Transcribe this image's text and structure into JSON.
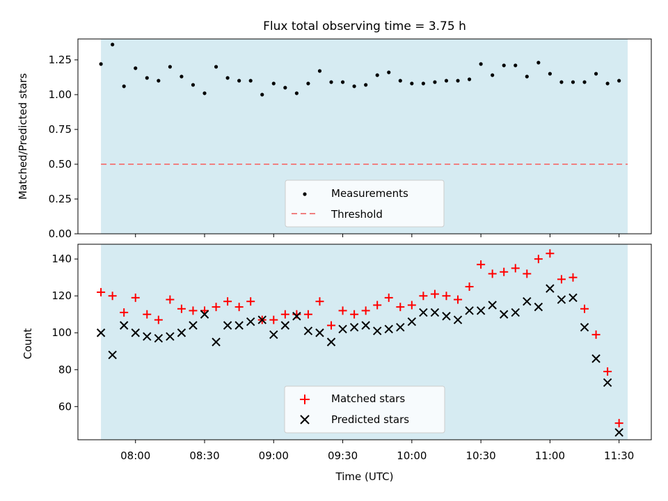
{
  "chart_data": [
    {
      "type": "scatter",
      "title": "Flux total observing time = 3.75 h",
      "ylabel": "Matched/Predicted stars",
      "xlabel": "",
      "ylim": [
        0,
        1.4
      ],
      "yticks": [
        "0.00",
        "0.25",
        "0.50",
        "0.75",
        "1.00",
        "1.25"
      ],
      "x_unit": "minutes after 07:00 UTC",
      "series": [
        {
          "name": "Measurements",
          "color": "#000000",
          "marker": "dot",
          "x": [
            45,
            50,
            55,
            60,
            65,
            70,
            75,
            80,
            85,
            90,
            95,
            100,
            105,
            110,
            115,
            120,
            125,
            130,
            135,
            140,
            145,
            150,
            155,
            160,
            165,
            170,
            175,
            180,
            185,
            190,
            195,
            200,
            205,
            210,
            215,
            220,
            225,
            230,
            235,
            240,
            245,
            250,
            255,
            260,
            265,
            270
          ],
          "values": [
            1.22,
            1.36,
            1.06,
            1.19,
            1.12,
            1.1,
            1.2,
            1.13,
            1.07,
            1.01,
            1.2,
            1.12,
            1.1,
            1.1,
            1.0,
            1.08,
            1.05,
            1.01,
            1.08,
            1.17,
            1.09,
            1.09,
            1.06,
            1.07,
            1.14,
            1.16,
            1.1,
            1.08,
            1.08,
            1.09,
            1.1,
            1.1,
            1.11,
            1.22,
            1.14,
            1.21,
            1.21,
            1.13,
            1.23,
            1.15,
            1.09,
            1.09,
            1.09,
            1.15,
            1.08,
            1.1
          ]
        }
      ],
      "threshold": {
        "name": "Threshold",
        "value": 0.5,
        "color": "#f08080"
      },
      "legend_placement": "lower center"
    },
    {
      "type": "scatter",
      "title": "",
      "ylabel": "Count",
      "xlabel": "Time (UTC)",
      "ylim": [
        42,
        148
      ],
      "yticks": [
        "60",
        "80",
        "100",
        "120",
        "140"
      ],
      "xticks": [
        "08:00",
        "08:30",
        "09:00",
        "09:30",
        "10:00",
        "10:30",
        "11:00",
        "11:30"
      ],
      "xtick_values": [
        60,
        90,
        120,
        150,
        180,
        210,
        240,
        270
      ],
      "xlim": [
        35,
        284
      ],
      "x_unit": "minutes after 07:00 UTC",
      "series": [
        {
          "name": "Matched stars",
          "color": "#ff0000",
          "marker": "plus",
          "x": [
            45,
            50,
            55,
            60,
            65,
            70,
            75,
            80,
            85,
            90,
            95,
            100,
            105,
            110,
            115,
            120,
            125,
            130,
            135,
            140,
            145,
            150,
            155,
            160,
            165,
            170,
            175,
            180,
            185,
            190,
            195,
            200,
            205,
            210,
            215,
            220,
            225,
            230,
            235,
            240,
            245,
            250,
            255,
            260,
            265,
            270
          ],
          "values": [
            122,
            120,
            111,
            119,
            110,
            107,
            118,
            113,
            112,
            112,
            114,
            117,
            114,
            117,
            107,
            107,
            110,
            110,
            110,
            117,
            104,
            112,
            110,
            112,
            115,
            119,
            114,
            115,
            120,
            121,
            120,
            118,
            125,
            137,
            132,
            133,
            135,
            132,
            140,
            143,
            129,
            130,
            113,
            99,
            79,
            51
          ]
        },
        {
          "name": "Predicted stars",
          "color": "#000000",
          "marker": "cross",
          "x": [
            45,
            50,
            55,
            60,
            65,
            70,
            75,
            80,
            85,
            90,
            95,
            100,
            105,
            110,
            115,
            120,
            125,
            130,
            135,
            140,
            145,
            150,
            155,
            160,
            165,
            170,
            175,
            180,
            185,
            190,
            195,
            200,
            205,
            210,
            215,
            220,
            225,
            230,
            235,
            240,
            245,
            250,
            255,
            260,
            265,
            270
          ],
          "values": [
            100,
            88,
            104,
            100,
            98,
            97,
            98,
            100,
            104,
            110,
            95,
            104,
            104,
            106,
            107,
            99,
            104,
            109,
            101,
            100,
            95,
            102,
            103,
            104,
            101,
            102,
            103,
            106,
            111,
            111,
            109,
            107,
            112,
            112,
            115,
            110,
            111,
            117,
            114,
            124,
            118,
            119,
            103,
            86,
            73,
            46
          ]
        }
      ],
      "legend_placement": "lower center"
    }
  ],
  "shade": {
    "x_start": 45,
    "x_end": 273.75,
    "color": "#add8e6"
  }
}
